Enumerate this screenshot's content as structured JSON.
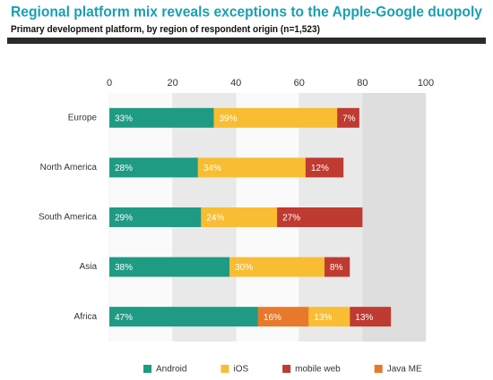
{
  "chart_data": {
    "type": "stacked-bar-horizontal",
    "title": "Regional platform mix reveals exceptions to the Apple-Google duopoly",
    "subtitle": "Primary development platform, by region of respondent origin (n=1,523)",
    "categories": [
      "Europe",
      "North America",
      "South America",
      "Asia",
      "Africa"
    ],
    "series": [
      {
        "name": "Android",
        "color": "#1f9a83",
        "values": [
          33,
          28,
          29,
          38,
          47
        ],
        "value_labels": [
          "33%",
          "28%",
          "29%",
          "38%",
          "47%"
        ]
      },
      {
        "name": "iOS",
        "color": "#f8bd32",
        "values": [
          39,
          34,
          24,
          30,
          13
        ],
        "value_labels": [
          "39%",
          "34%",
          "24%",
          "30%",
          "13%"
        ]
      },
      {
        "name": "mobile web",
        "color": "#bf3a30",
        "values": [
          7,
          12,
          27,
          8,
          13
        ],
        "value_labels": [
          "7%",
          "12%",
          "27%",
          "8%",
          "13%"
        ]
      },
      {
        "name": "Java ME",
        "color": "#e8792a",
        "values": [
          null,
          null,
          null,
          null,
          16
        ],
        "value_labels": [
          null,
          null,
          null,
          null,
          "16%"
        ]
      }
    ],
    "xlim": [
      0,
      100
    ],
    "xticks": [
      0,
      20,
      40,
      60,
      80,
      100
    ]
  }
}
